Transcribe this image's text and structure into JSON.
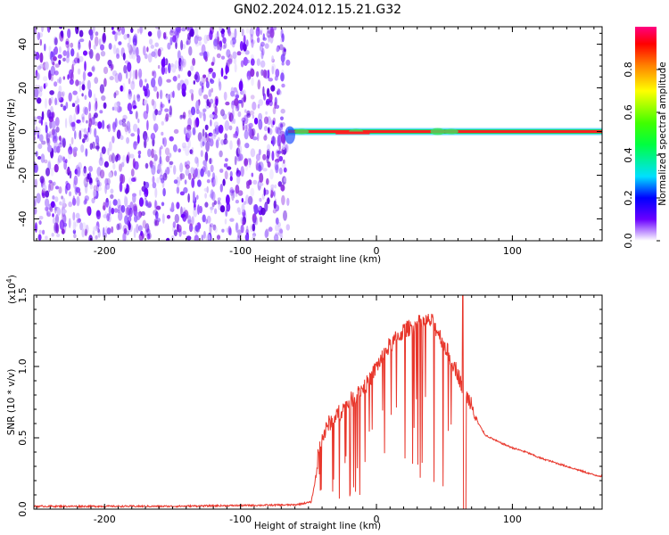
{
  "title": "GN02.2024.012.15.21.G32",
  "chart_data": [
    {
      "type": "heatmap",
      "name": "spectrogram",
      "xlabel": "Height of straight line (km)",
      "ylabel": "Frequency (Hz)",
      "xlim": [
        -252,
        166
      ],
      "ylim": [
        -50,
        48
      ],
      "xticks": [
        -200,
        -100,
        0,
        100
      ],
      "xtick_labels": [
        "-200",
        "-100",
        "0",
        "100"
      ],
      "yticks": [
        -40,
        -20,
        0,
        20,
        40
      ],
      "ytick_labels": [
        "-40",
        "-20",
        "0",
        "20",
        "40"
      ],
      "colorbar": {
        "label": "Normalized spectral amplitude",
        "range": [
          0,
          1
        ],
        "ticks": [
          0.0,
          0.2,
          0.4,
          0.6,
          0.8
        ],
        "tick_labels": [
          "0.0",
          "0.2",
          "0.4",
          "0.6",
          "0.8"
        ]
      },
      "regions": [
        {
          "x_range": [
            -252,
            -65
          ],
          "description": "broadband noise, low amplitude (~0.1)"
        },
        {
          "x_range": [
            -65,
            166
          ],
          "frequency_hz": 0,
          "amplitude": 0.95
        }
      ]
    },
    {
      "type": "line",
      "name": "snr",
      "xlabel": "Height of straight line (km)",
      "ylabel": "SNR (10 * v/v)",
      "y_scale_label": "(x10",
      "y_scale_exp": "4",
      "y_scale_close": ")",
      "xlim": [
        -252,
        166
      ],
      "ylim": [
        0,
        1.5
      ],
      "xticks": [
        -200,
        -100,
        0,
        100
      ],
      "xtick_labels": [
        "-200",
        "-100",
        "0",
        "100"
      ],
      "yticks": [
        0.0,
        0.5,
        1.0,
        1.5
      ],
      "ytick_labels": [
        "0.0",
        "0.5",
        "1.0",
        "1.5"
      ],
      "color": "#e8362b",
      "series": [
        {
          "x": [
            -252,
            -150,
            -60,
            -48,
            -45,
            -42,
            -35,
            -25,
            -15,
            -5,
            0,
            10,
            20,
            30,
            40,
            45,
            50,
            55,
            60,
            65,
            70,
            75,
            80,
            90,
            100,
            110,
            120,
            130,
            140,
            150,
            160,
            166
          ],
          "y": [
            0.02,
            0.02,
            0.03,
            0.05,
            0.2,
            0.45,
            0.6,
            0.7,
            0.8,
            0.9,
            1.0,
            1.15,
            1.25,
            1.3,
            1.32,
            1.25,
            1.15,
            1.05,
            0.95,
            0.8,
            0.75,
            0.6,
            0.52,
            0.47,
            0.43,
            0.4,
            0.36,
            0.33,
            0.3,
            0.27,
            0.24,
            0.23
          ]
        }
      ]
    }
  ]
}
